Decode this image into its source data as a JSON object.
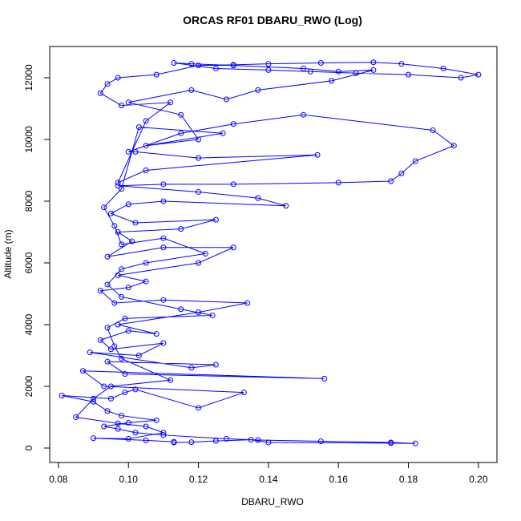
{
  "chart_data": {
    "type": "line",
    "title": "ORCAS RF01 DBARU_RWO (Log)",
    "x_label": "DBARU_RWO",
    "y_label": "Altitude (m)",
    "color": "#0000ff",
    "markers": true,
    "xlim": [
      0.0775,
      0.2053
    ],
    "ylim": [
      -468,
      13013
    ],
    "xticks": [
      0.08,
      {
        "value": 0.1,
        "label": "0.10"
      },
      0.12,
      0.14,
      0.16,
      0.18,
      {
        "value": 0.2,
        "label": "0.20"
      }
    ],
    "yticks": [
      0,
      2000,
      4000,
      6000,
      8000,
      10000,
      12000
    ],
    "x": [
      0.113,
      0.118,
      0.125,
      0.135,
      0.14,
      0.175,
      0.182,
      0.175,
      0.155,
      0.137,
      0.128,
      0.11,
      0.102,
      0.097,
      0.093,
      0.1,
      0.108,
      0.098,
      0.094,
      0.09,
      0.081,
      0.095,
      0.099,
      0.102,
      0.12,
      0.133,
      0.093,
      0.087,
      0.156,
      0.099,
      0.094,
      0.125,
      0.118,
      0.089,
      0.103,
      0.11,
      0.095,
      0.092,
      0.1,
      0.108,
      0.097,
      0.12,
      0.134,
      0.11,
      0.096,
      0.092,
      0.1,
      0.105,
      0.097,
      0.12,
      0.13,
      0.11,
      0.094,
      0.101,
      0.097,
      0.115,
      0.125,
      0.102,
      0.095,
      0.1,
      0.11,
      0.145,
      0.137,
      0.12,
      0.097,
      0.11,
      0.13,
      0.16,
      0.175,
      0.178,
      0.182,
      0.193,
      0.187,
      0.15,
      0.13,
      0.115,
      0.1,
      0.102,
      0.12,
      0.154,
      0.105,
      0.097,
      0.105,
      0.112,
      0.098,
      0.092,
      0.094,
      0.097,
      0.108,
      0.12,
      0.13,
      0.14,
      0.155,
      0.17,
      0.178,
      0.19,
      0.2,
      0.195,
      0.18,
      0.165,
      0.152,
      0.14,
      0.125,
      0.113,
      0.118,
      0.13,
      0.15,
      0.16,
      0.17,
      0.158,
      0.137,
      0.128,
      0.118,
      0.1,
      0.115,
      0.12,
      0.105,
      0.127,
      0.103,
      0.098,
      0.093,
      0.096,
      0.098,
      0.11,
      0.122,
      0.105,
      0.098,
      0.094,
      0.098,
      0.115,
      0.124,
      0.099,
      0.094,
      0.096,
      0.098,
      0.112,
      0.095,
      0.09,
      0.085,
      0.097,
      0.105,
      0.11,
      0.1,
      0.09,
      0.105,
      0.113
    ],
    "values": [
      180,
      190,
      230,
      270,
      180,
      160,
      150,
      180,
      220,
      260,
      300,
      420,
      500,
      620,
      700,
      820,
      900,
      1050,
      1200,
      1500,
      1700,
      1600,
      1800,
      1900,
      1300,
      1800,
      2000,
      2500,
      2250,
      2400,
      2800,
      2700,
      2600,
      3100,
      3000,
      3400,
      3200,
      3500,
      3800,
      3700,
      4000,
      4400,
      4700,
      4800,
      4700,
      5100,
      5200,
      5400,
      5600,
      6000,
      6500,
      6500,
      6200,
      6700,
      7000,
      7100,
      7400,
      7300,
      7600,
      7900,
      8000,
      7850,
      8100,
      8300,
      8500,
      8550,
      8550,
      8600,
      8650,
      8900,
      9300,
      9800,
      10300,
      10800,
      10500,
      10200,
      9600,
      9600,
      9400,
      9500,
      9000,
      8600,
      10600,
      11200,
      11100,
      11500,
      11800,
      12000,
      12100,
      12400,
      12420,
      12450,
      12480,
      12500,
      12450,
      12300,
      12100,
      12000,
      12100,
      12150,
      12200,
      12250,
      12300,
      12480,
      12450,
      12400,
      12300,
      12200,
      12250,
      11900,
      11600,
      11300,
      11600,
      11200,
      10800,
      10000,
      9800,
      10200,
      10400,
      8400,
      7800,
      7200,
      6600,
      6800,
      6300,
      6000,
      5800,
      5300,
      4900,
      4500,
      4300,
      4200,
      3900,
      3300,
      2900,
      2200,
      2000,
      1600,
      1000,
      800,
      700,
      500,
      300,
      320,
      250,
      200
    ]
  }
}
